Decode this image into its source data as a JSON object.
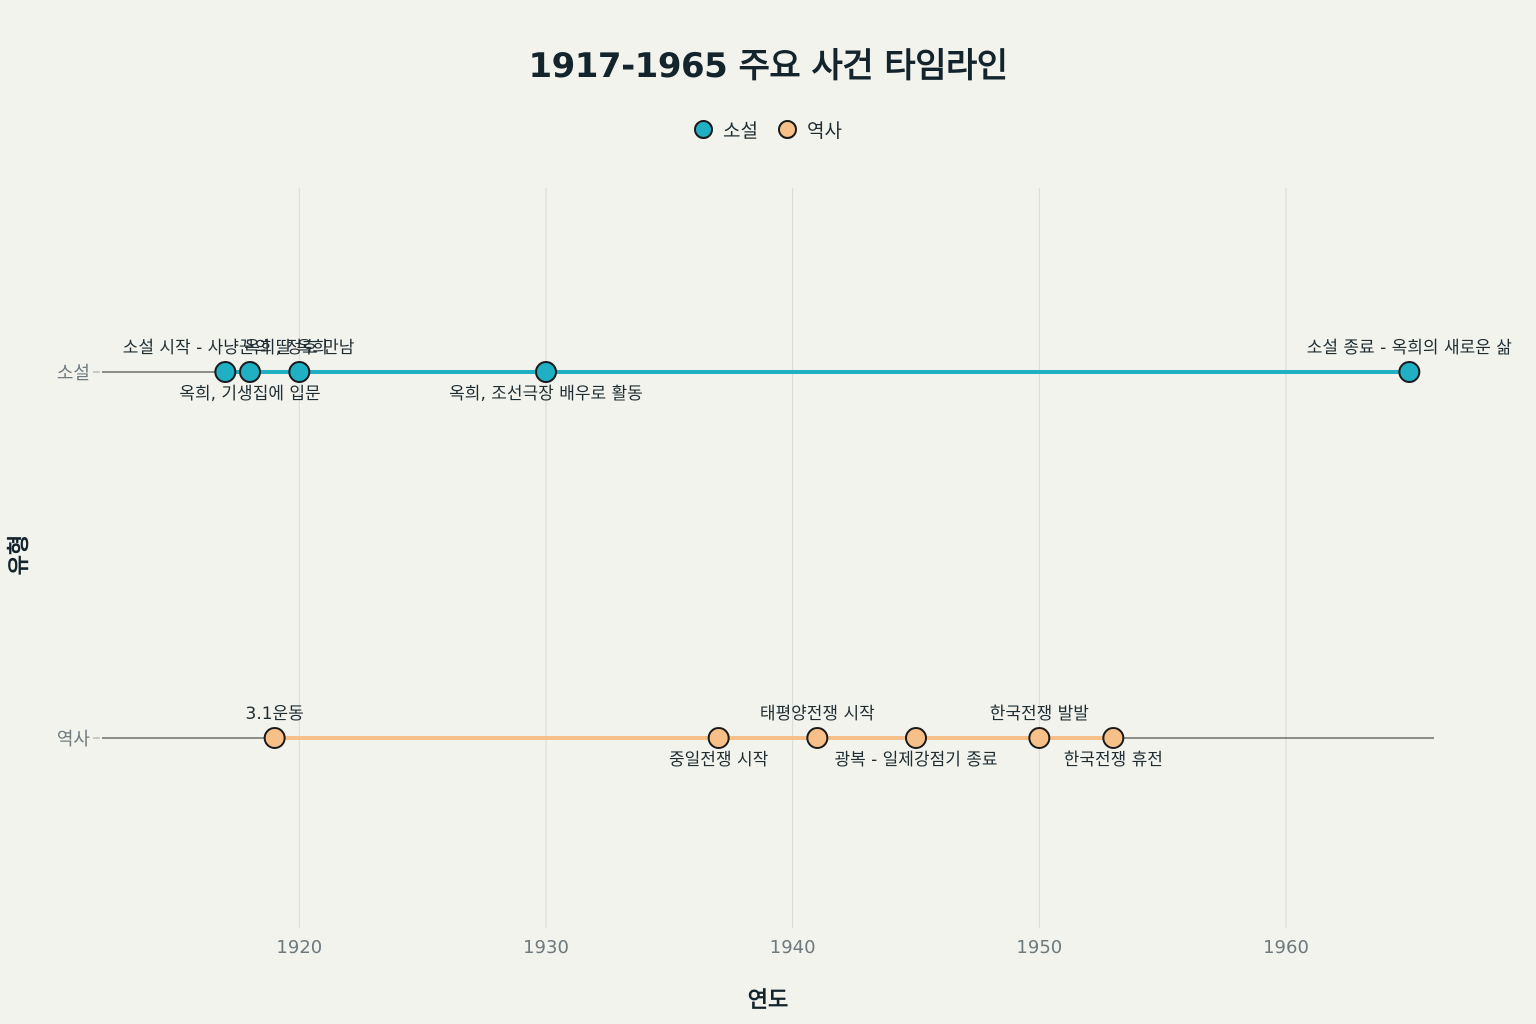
{
  "chart_data": {
    "type": "scatter",
    "title": "1917-1965 주요 사건 타임라인",
    "xlabel": "연도",
    "ylabel": "유형",
    "xlim": [
      1912,
      1966
    ],
    "x_ticks": [
      1920,
      1930,
      1940,
      1950,
      1960
    ],
    "categories": [
      "소설",
      "역사"
    ],
    "grid": "vertical",
    "legend_position": "top-center",
    "series": [
      {
        "name": "소설",
        "color": "#21afc3",
        "points": [
          {
            "x": 1917,
            "label": "소설 시작 - 사냥꾼의 딸 옥희",
            "label_pos": "above"
          },
          {
            "x": 1918,
            "label": "옥희, 기생집에 입문",
            "label_pos": "below"
          },
          {
            "x": 1920,
            "label": "옥희, 정호 만남",
            "label_pos": "above"
          },
          {
            "x": 1930,
            "label": "옥희, 조선극장 배우로 활동",
            "label_pos": "below"
          },
          {
            "x": 1965,
            "label": "소설 종료 - 옥희의 새로운 삶",
            "label_pos": "above"
          }
        ]
      },
      {
        "name": "역사",
        "color": "#f8c089",
        "points": [
          {
            "x": 1919,
            "label": "3.1운동",
            "label_pos": "above"
          },
          {
            "x": 1937,
            "label": "중일전쟁 시작",
            "label_pos": "below"
          },
          {
            "x": 1941,
            "label": "태평양전쟁 시작",
            "label_pos": "above"
          },
          {
            "x": 1945,
            "label": "광복 - 일제강점기 종료",
            "label_pos": "below"
          },
          {
            "x": 1950,
            "label": "한국전쟁 발발",
            "label_pos": "above"
          },
          {
            "x": 1953,
            "label": "한국전쟁 휴전",
            "label_pos": "below"
          }
        ]
      }
    ]
  }
}
